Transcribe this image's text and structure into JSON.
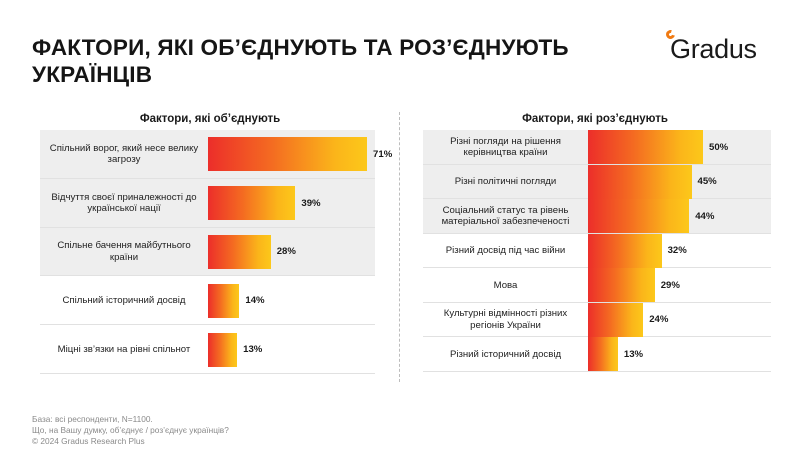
{
  "header": {
    "title_line1": "ФАКТОРИ, ЯКІ ОБ’ЄДНУЮТЬ ТА РОЗ’ЄДНУЮТЬ",
    "title_line2": "УКРАЇНЦІВ",
    "logo_text": "Gradus"
  },
  "colors": {
    "bar_start": "#ec2e2a",
    "bar_mid": "#f46b21",
    "bar_end": "#fcc81a",
    "accent": "#f07a12"
  },
  "chart_data": [
    {
      "type": "bar",
      "orientation": "horizontal",
      "title": "Фактори, які об’єднують",
      "categories": [
        "Спільний ворог, який несе велику загрозу",
        "Відчуття своєї приналежності до української нації",
        "Спільне бачення майбутнього країни",
        "Спільний історичний досвід",
        "Міцні зв’язки на рівні спільнот"
      ],
      "values": [
        71,
        39,
        28,
        14,
        13
      ],
      "labels": [
        "71%",
        "39%",
        "28%",
        "14%",
        "13%"
      ],
      "xlim": [
        0,
        100
      ]
    },
    {
      "type": "bar",
      "orientation": "horizontal",
      "title": "Фактори, які роз’єднують",
      "categories": [
        "Різні погляди на рішення керівництва країни",
        "Різні політичні погляди",
        "Соціальний статус та рівень матеріальної забезпеченості",
        "Різний досвід під час війни",
        "Мова",
        "Культурні відмінності різних регіонів України",
        "Різний історичний досвід"
      ],
      "values": [
        50,
        45,
        44,
        32,
        29,
        24,
        13
      ],
      "labels": [
        "50%",
        "45%",
        "44%",
        "32%",
        "29%",
        "24%",
        "13%"
      ],
      "xlim": [
        0,
        100
      ]
    }
  ],
  "footnote": {
    "line1": "База: всі респонденти, N=1100.",
    "line2": "Що, на Вашу думку, об’єднує / роз’єднує українців?",
    "line3": "© 2024 Gradus Research Plus"
  }
}
